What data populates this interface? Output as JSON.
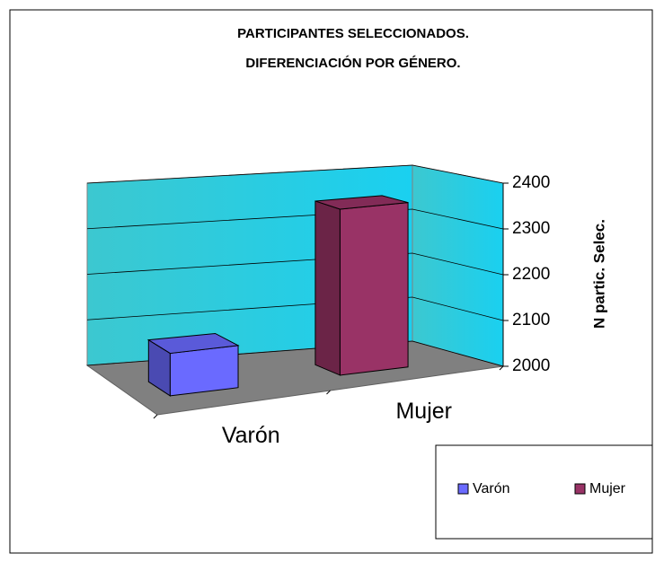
{
  "chart_data": {
    "type": "bar",
    "title": [
      "PARTICIPANTES SELECCIONADOS.",
      "DIFERENCIACIÓN POR GÉNERO."
    ],
    "y_axis_label": "N partic. Selec.",
    "categories": [
      "Varón",
      "Mujer"
    ],
    "values": [
      2090,
      2360
    ],
    "colors": [
      "#6a6aff",
      "#993366"
    ],
    "ylim": [
      2000,
      2400
    ],
    "yticks": [
      2000,
      2100,
      2200,
      2300,
      2400
    ],
    "grid": true
  }
}
